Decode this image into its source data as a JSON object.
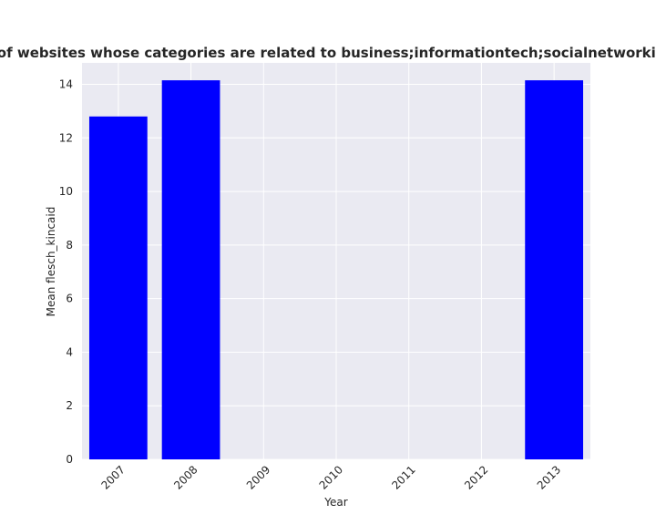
{
  "chart_data": {
    "type": "bar",
    "title": "Mean flesch_kincaid in privacy policies of websites whose categories are related to business;informationtech;socialnetworking Mean flesch_kincaid in privacy policies",
    "xlabel": "Year",
    "ylabel": "Mean flesch_kincaid",
    "categories": [
      "2007",
      "2008",
      "2009",
      "2010",
      "2011",
      "2012",
      "2013"
    ],
    "values": [
      12.8,
      14.15,
      0,
      0,
      0,
      0,
      14.15
    ],
    "ylim": [
      0,
      14.8
    ],
    "yticks": [
      0,
      2,
      4,
      6,
      8,
      10,
      12,
      14
    ],
    "grid": true,
    "bar_color": "#0000ff",
    "plot_background": "#eaeaf2",
    "legend": "none"
  }
}
